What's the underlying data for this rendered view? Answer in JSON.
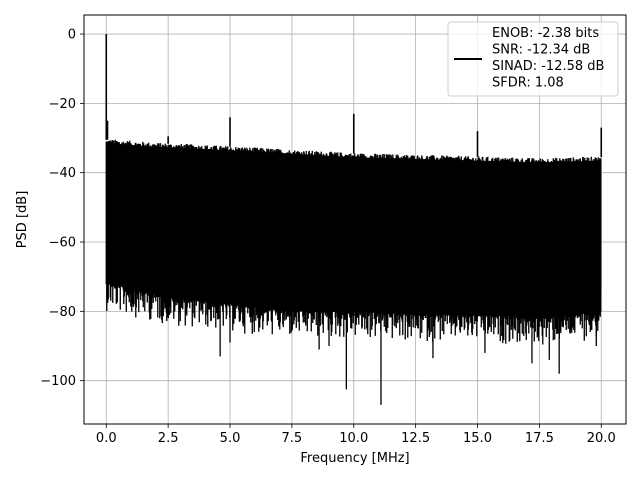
{
  "chart_data": {
    "type": "line",
    "title": "",
    "xlabel": "Frequency [MHz]",
    "ylabel": "PSD [dB]",
    "xlim": [
      -0.9,
      21.0
    ],
    "ylim": [
      -112.5,
      5.5
    ],
    "grid": true,
    "legend_position": "top-right",
    "x_ticks": [
      0.0,
      2.5,
      5.0,
      7.5,
      10.0,
      12.5,
      15.0,
      17.5,
      20.0
    ],
    "x_tick_labels": [
      "0.0",
      "2.5",
      "5.0",
      "7.5",
      "10.0",
      "12.5",
      "15.0",
      "17.5",
      "20.0"
    ],
    "y_ticks": [
      0,
      -20,
      -40,
      -60,
      -80,
      -100
    ],
    "y_tick_labels": [
      "0",
      "−20",
      "−40",
      "−60",
      "−80",
      "−100"
    ],
    "series": [
      {
        "name": "ENOB: -2.38 bits\nSNR: -12.34 dB\nSINAD: -12.58 dB\nSFDR: 1.08",
        "color": "#000000",
        "noise_ceiling": [
          [
            0.1,
            -32.5
          ],
          [
            2.0,
            -33.5
          ],
          [
            5.0,
            -34.5
          ],
          [
            7.5,
            -35.5
          ],
          [
            10.0,
            -36.5
          ],
          [
            12.5,
            -37.0
          ],
          [
            15.0,
            -37.5
          ],
          [
            17.5,
            -38.0
          ],
          [
            20.0,
            -37.5
          ]
        ],
        "noise_floor": [
          [
            0.1,
            -72
          ],
          [
            2.5,
            -76
          ],
          [
            5.0,
            -78
          ],
          [
            7.5,
            -80
          ],
          [
            10.0,
            -80
          ],
          [
            12.5,
            -81
          ],
          [
            15.0,
            -81
          ],
          [
            17.5,
            -82
          ],
          [
            20.0,
            -80
          ]
        ],
        "peaks": [
          {
            "x": 0.0,
            "y": 0
          },
          {
            "x": 0.05,
            "y": -25
          },
          {
            "x": 2.5,
            "y": -29.5
          },
          {
            "x": 5.0,
            "y": -24
          },
          {
            "x": 10.0,
            "y": -23
          },
          {
            "x": 15.0,
            "y": -28
          },
          {
            "x": 20.0,
            "y": -27
          }
        ],
        "dips": [
          {
            "x": 4.6,
            "y": -93
          },
          {
            "x": 5.0,
            "y": -89
          },
          {
            "x": 8.6,
            "y": -91
          },
          {
            "x": 9.0,
            "y": -90
          },
          {
            "x": 9.7,
            "y": -102.5
          },
          {
            "x": 11.1,
            "y": -107
          },
          {
            "x": 13.2,
            "y": -93.5
          },
          {
            "x": 15.3,
            "y": -92
          },
          {
            "x": 17.2,
            "y": -95
          },
          {
            "x": 17.9,
            "y": -94
          },
          {
            "x": 18.3,
            "y": -98
          },
          {
            "x": 19.8,
            "y": -90
          }
        ]
      }
    ]
  }
}
